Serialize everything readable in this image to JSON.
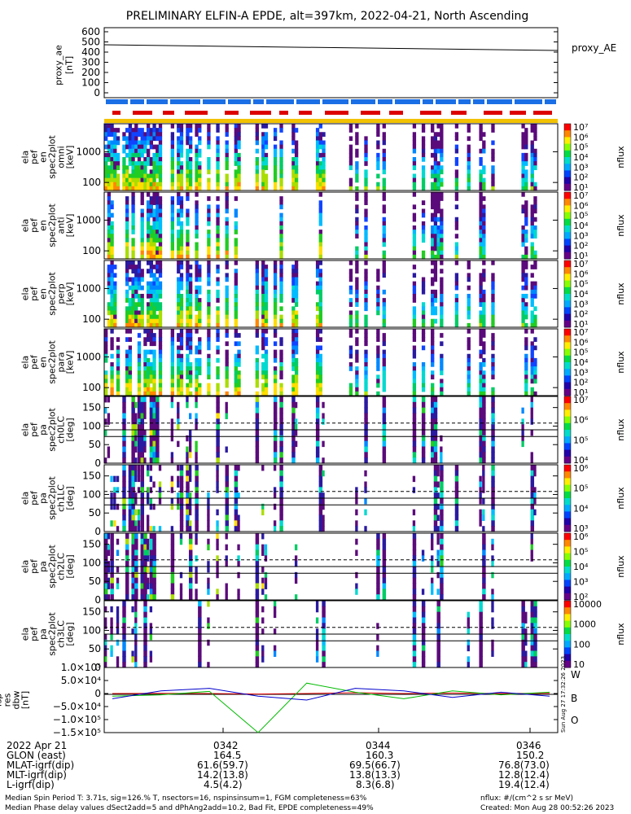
{
  "title": "PRELIMINARY ELFIN-A EPDE, alt=397km, 2022-04-21, North Ascending",
  "proxy_panel": {
    "ylabel": [
      "proxy_ae",
      "[nT]"
    ],
    "legend": "proxy_AE",
    "yticks": [
      "600",
      "500",
      "400",
      "300",
      "200",
      "100",
      "0"
    ]
  },
  "spectral_panels": [
    {
      "ylabel": [
        "ela",
        "pef",
        "en",
        "spec2plot",
        "omni",
        "[keV]"
      ],
      "yticks": [
        "1000",
        "100"
      ]
    },
    {
      "ylabel": [
        "ela",
        "pef",
        "en",
        "spec2plot",
        "anti",
        "[keV]"
      ],
      "yticks": [
        "1000",
        "100"
      ]
    },
    {
      "ylabel": [
        "ela",
        "pef",
        "en",
        "spec2plot",
        "perp",
        "[keV]"
      ],
      "yticks": [
        "1000",
        "100"
      ]
    },
    {
      "ylabel": [
        "ela",
        "pef",
        "en",
        "spec2plot",
        "para",
        "[keV]"
      ],
      "yticks": [
        "1000",
        "100"
      ]
    }
  ],
  "pitch_panels": [
    {
      "ylabel": [
        "ela",
        "pef",
        "pa",
        "spec2plot",
        "ch0LC",
        "[deg]"
      ],
      "yticks": [
        "150",
        "100",
        "50",
        "0"
      ]
    },
    {
      "ylabel": [
        "ela",
        "pef",
        "pa",
        "spec2plot",
        "ch1LC",
        "[deg]"
      ],
      "yticks": [
        "150",
        "100",
        "50",
        "0"
      ]
    },
    {
      "ylabel": [
        "ela",
        "pef",
        "pa",
        "spec2plot",
        "ch2LC",
        "[deg]"
      ],
      "yticks": [
        "150",
        "100",
        "50",
        "0"
      ]
    },
    {
      "ylabel": [
        "ela",
        "pef",
        "pa",
        "spec2plot",
        "ch3LC",
        "[deg]"
      ],
      "yticks": [
        "150",
        "100",
        "50",
        "0"
      ]
    }
  ],
  "colorbars": [
    {
      "label": "nflux",
      "ticks": [
        "10⁷",
        "10⁶",
        "10⁵",
        "10⁴",
        "10³",
        "10²",
        "10¹"
      ]
    },
    {
      "label": "nflux",
      "ticks": [
        "10⁷",
        "10⁶",
        "10⁵",
        "10⁴",
        "10³",
        "10²",
        "10¹"
      ]
    },
    {
      "label": "nflux",
      "ticks": [
        "10⁷",
        "10⁶",
        "10⁵",
        "10⁴",
        "10³",
        "10²",
        "10¹"
      ]
    },
    {
      "label": "nflux",
      "ticks": [
        "10⁷",
        "10⁶",
        "10⁵",
        "10⁴",
        "10³",
        "10²",
        "10¹"
      ]
    },
    {
      "label": "nflux",
      "ticks": [
        "10⁷",
        "10⁶",
        "10⁵",
        "10⁴"
      ]
    },
    {
      "label": "nflux",
      "ticks": [
        "10⁶",
        "10⁵",
        "10⁴",
        "10³"
      ]
    },
    {
      "label": "nflux",
      "ticks": [
        "10⁶",
        "10⁵",
        "10⁴",
        "10³",
        "10²"
      ]
    },
    {
      "label": "nflux",
      "ticks": [
        "10000",
        "1000",
        "100",
        "10"
      ]
    }
  ],
  "bfield_panel": {
    "ylabel": [
      "fsp",
      "res",
      "dbw",
      "[nT]"
    ],
    "yticks": [
      "1.0×10⁵",
      "5.0×10⁴",
      "0",
      "−5.0×10⁴",
      "−1.0×10⁵",
      "−1.5×10⁵"
    ],
    "legend": [
      "W",
      "B",
      "O"
    ],
    "side_text": "Sun Aug 27 17:32:26 2023"
  },
  "colors": {
    "red": "#dd0000",
    "blue": "#1a6fe6",
    "yellow": "#f2c200",
    "green": "#00bb00",
    "darkblue": "#0000cc"
  },
  "footer": {
    "left": [
      "2022 Apr 21",
      "GLON (east)",
      "MLAT-igrf(dip)",
      "MLT-igrf(dip)",
      "L-igrf(dip)"
    ],
    "cols": [
      [
        "0342",
        "164.5",
        "61.6(59.7)",
        "14.2(13.8)",
        "4.5(4.2)"
      ],
      [
        "0344",
        "160.3",
        "69.5(66.7)",
        "13.8(13.3)",
        "8.3(6.8)"
      ],
      [
        "0346",
        "150.2",
        "76.8(73.0)",
        "12.8(12.4)",
        "19.4(12.4)"
      ]
    ],
    "note1": "Median Spin Period T: 3.71s, sig=126.% T, nsectors=16, nspinsinsum=1, FGM completeness=63%",
    "note2": "Median Phase delay values dSect2add=5 and dPhAng2add=10.2, Bad Fit, EPDE completeness=49%",
    "units": "nflux: #/(cm^2 s sr MeV)",
    "created": "Created: Mon Aug 28 00:52:26 2023"
  },
  "chart_data": [
    {
      "type": "line",
      "title": "PRELIMINARY ELFIN-A EPDE, alt=397km, 2022-04-21, North Ascending",
      "series": [
        {
          "name": "proxy_AE",
          "x": [
            "0340:40",
            "0347:10"
          ],
          "y": [
            460,
            405
          ]
        }
      ],
      "ylim": [
        0,
        600
      ]
    },
    {
      "type": "heatmap",
      "panels": 4,
      "y_scale": "log",
      "ylim_keV": [
        60,
        7000
      ],
      "zlim": [
        "10¹",
        "10⁷"
      ]
    },
    {
      "type": "heatmap",
      "panels": 4,
      "ylim_deg": [
        0,
        180
      ],
      "zlim": [
        "10",
        "10⁷"
      ]
    },
    {
      "type": "line",
      "series": [
        {
          "name": "W",
          "color": "#dd0000",
          "y": [
            0,
            1000,
            0,
            -2000,
            0,
            3000,
            0,
            2000,
            0,
            500
          ]
        },
        {
          "name": "B",
          "color": "#00bb00",
          "y": [
            -10000,
            -5000,
            8000,
            -150000,
            40000,
            5000,
            -20000,
            10000,
            -5000,
            5000
          ]
        },
        {
          "name": "O",
          "color": "#0000cc",
          "y": [
            -20000,
            10000,
            20000,
            -10000,
            -25000,
            20000,
            10000,
            -15000,
            5000,
            -10000
          ]
        }
      ],
      "ylim": [
        -150000,
        100000
      ]
    }
  ]
}
